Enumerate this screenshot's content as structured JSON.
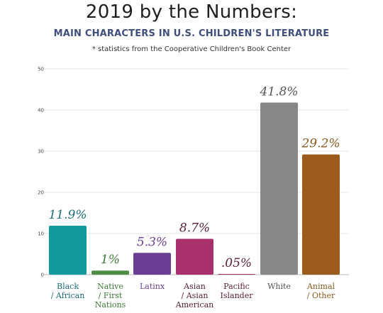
{
  "title": "2019 by the Numbers:",
  "subtitle": "MAIN CHARACTERS IN U.S. CHILDREN'S LITERATURE",
  "note": "* statistics from the Cooperative Children's Book Center",
  "chart_data": {
    "type": "bar",
    "categories": [
      [
        "Black",
        "/ African"
      ],
      [
        "Native",
        "/ First",
        "Nations"
      ],
      [
        "Latinx"
      ],
      [
        "Asian",
        "/ Asian",
        "American"
      ],
      [
        "Pacific",
        "Islander"
      ],
      [
        "White"
      ],
      [
        "Animal",
        "/ Other"
      ]
    ],
    "values": [
      11.9,
      1,
      5.3,
      8.7,
      0.05,
      41.8,
      29.2
    ],
    "data_labels": [
      "11.9%",
      "1%",
      "5.3%",
      "8.7%",
      ".05%",
      "41.8%",
      "29.2%"
    ],
    "colors": [
      "#12999b",
      "#4f8f45",
      "#6a3f93",
      "#a8306b",
      "#a8306b",
      "#878787",
      "#9c5a1c"
    ],
    "label_colors": [
      "#1c6e78",
      "#3e7a35",
      "#6a3f93",
      "#5b2233",
      "#5b2233",
      "#555555",
      "#8a5a1e"
    ],
    "ylim": [
      0,
      50
    ],
    "yticks": [
      0,
      10,
      20,
      30,
      40,
      50
    ],
    "grid": true,
    "xlabel": "",
    "ylabel": ""
  }
}
